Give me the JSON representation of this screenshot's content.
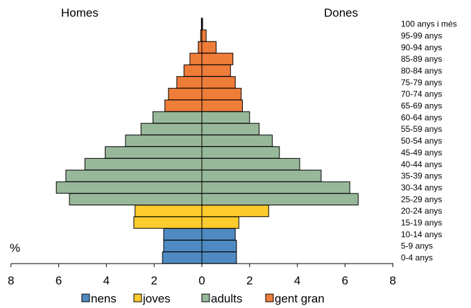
{
  "chart_data": {
    "type": "bar",
    "orientation": "horizontal",
    "subtype": "population-pyramid",
    "left_label": "Homes",
    "right_label": "Dones",
    "unit_label": "%",
    "categories": [
      "0-4 anys",
      "5-9 anys",
      "10-14 anys",
      "15-19 anys",
      "20-24 anys",
      "25-29 anys",
      "30-34 anys",
      "35-39 anys",
      "40-44 anys",
      "45-49 anys",
      "50-54 anys",
      "55-59 anys",
      "60-64 anys",
      "65-69 anys",
      "70-74 anys",
      "75-79 anys",
      "80-84 anys",
      "85-89 anys",
      "90-94 anys",
      "95-99 anys",
      "100 anys i més"
    ],
    "series": [
      {
        "name": "Homes",
        "values": [
          1.65,
          1.6,
          1.6,
          2.85,
          2.8,
          5.55,
          6.1,
          5.7,
          4.9,
          4.05,
          3.2,
          2.55,
          2.05,
          1.55,
          1.4,
          1.05,
          0.75,
          0.5,
          0.15,
          0.05,
          0.02
        ]
      },
      {
        "name": "Dones",
        "values": [
          1.45,
          1.45,
          1.4,
          1.55,
          2.8,
          6.55,
          6.2,
          5.0,
          4.1,
          3.25,
          2.95,
          2.4,
          2.0,
          1.7,
          1.65,
          1.4,
          1.2,
          1.3,
          0.6,
          0.18,
          0.03
        ]
      }
    ],
    "groups": [
      {
        "name": "nens",
        "color": "#4f8bc2",
        "from": 0,
        "to": 2
      },
      {
        "name": "joves",
        "color": "#fccb2d",
        "from": 3,
        "to": 4
      },
      {
        "name": "adults",
        "color": "#98b89a",
        "from": 5,
        "to": 12
      },
      {
        "name": "gent gran",
        "color": "#ef7d3a",
        "from": 13,
        "to": 20
      }
    ],
    "xticks": [
      "8",
      "6",
      "4",
      "2",
      "0",
      "2",
      "4",
      "6",
      "8"
    ],
    "xlim": [
      -8,
      8
    ],
    "grid": false,
    "legend_position": "bottom"
  }
}
